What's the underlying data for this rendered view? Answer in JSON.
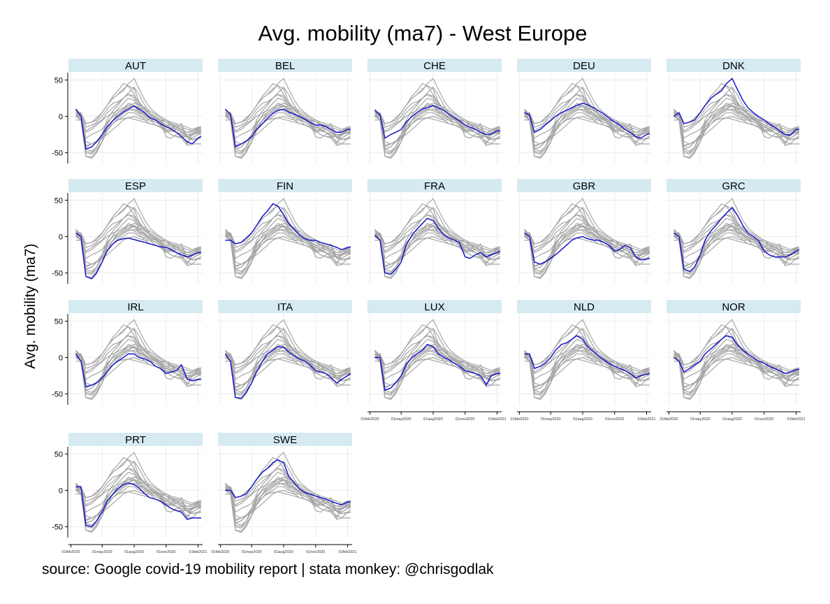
{
  "title": "Avg. mobility (ma7) - West Europe",
  "ylabel": "Avg. mobility (ma7)",
  "source": "source: Google covid-19 mobility report | stata monkey: @chrisgodlak",
  "colors": {
    "highlight": "#1515c8",
    "background_series": "#a6a6a6",
    "strip": "#d6eaf2",
    "grid": "#ececec"
  },
  "chart_data": {
    "type": "line",
    "facet": "small-multiples, one panel per country; highlighted country in blue, all other countries in grey",
    "countries": [
      "AUT",
      "BEL",
      "CHE",
      "DEU",
      "DNK",
      "ESP",
      "FIN",
      "FRA",
      "GBR",
      "GRC",
      "IRL",
      "ITA",
      "LUX",
      "NLD",
      "NOR",
      "PRT",
      "SWE"
    ],
    "x_ticks": [
      "01feb2020",
      "01may2020",
      "01aug2020",
      "01nov2020",
      "01feb2021"
    ],
    "y_ticks": [
      50,
      0,
      -50
    ],
    "ylim": [
      -65,
      60
    ],
    "x_dates": [
      "2020-02-15",
      "2020-03-01",
      "2020-03-15",
      "2020-04-01",
      "2020-04-15",
      "2020-05-01",
      "2020-05-15",
      "2020-06-01",
      "2020-06-15",
      "2020-07-01",
      "2020-07-15",
      "2020-08-01",
      "2020-08-15",
      "2020-09-01",
      "2020-09-15",
      "2020-10-01",
      "2020-10-15",
      "2020-11-01",
      "2020-11-15",
      "2020-12-01",
      "2020-12-15",
      "2021-01-01",
      "2021-01-15",
      "2021-02-01",
      "2021-02-10"
    ],
    "series": [
      {
        "name": "AUT",
        "values": [
          10,
          0,
          -45,
          -42,
          -35,
          -25,
          -15,
          -6,
          0,
          6,
          10,
          14,
          10,
          5,
          -2,
          -5,
          -10,
          -14,
          -17,
          -22,
          -28,
          -35,
          -38,
          -30,
          -27
        ]
      },
      {
        "name": "BEL",
        "values": [
          10,
          3,
          -42,
          -38,
          -34,
          -28,
          -18,
          -10,
          -3,
          4,
          8,
          10,
          6,
          3,
          0,
          -4,
          -8,
          -12,
          -12,
          -14,
          -18,
          -22,
          -22,
          -18,
          -18
        ]
      },
      {
        "name": "CHE",
        "values": [
          8,
          2,
          -30,
          -25,
          -22,
          -18,
          -8,
          0,
          5,
          10,
          12,
          15,
          12,
          8,
          3,
          -2,
          -6,
          -12,
          -15,
          -18,
          -22,
          -25,
          -24,
          -20,
          -20
        ]
      },
      {
        "name": "DEU",
        "values": [
          5,
          2,
          -22,
          -18,
          -12,
          -6,
          0,
          5,
          8,
          12,
          15,
          18,
          16,
          12,
          8,
          3,
          -2,
          -8,
          -12,
          -18,
          -22,
          -28,
          -30,
          -25,
          -24
        ]
      },
      {
        "name": "DNK",
        "values": [
          0,
          5,
          -10,
          -8,
          -5,
          5,
          15,
          25,
          30,
          35,
          45,
          52,
          38,
          22,
          12,
          5,
          0,
          -5,
          -10,
          -15,
          -20,
          -25,
          -26,
          -18,
          -18
        ]
      },
      {
        "name": "ESP",
        "values": [
          5,
          0,
          -55,
          -58,
          -50,
          -35,
          -20,
          -10,
          -5,
          -3,
          -2,
          -4,
          -6,
          -8,
          -10,
          -12,
          -14,
          -15,
          -18,
          -22,
          -25,
          -28,
          -26,
          -22,
          -22
        ]
      },
      {
        "name": "FIN",
        "values": [
          -5,
          -5,
          -10,
          -8,
          -2,
          5,
          15,
          28,
          35,
          45,
          42,
          30,
          18,
          10,
          2,
          -3,
          -5,
          -5,
          -8,
          -10,
          -12,
          -15,
          -18,
          -15,
          -14
        ]
      },
      {
        "name": "FRA",
        "values": [
          2,
          -5,
          -50,
          -52,
          -45,
          -35,
          -12,
          2,
          10,
          18,
          25,
          22,
          12,
          2,
          -2,
          -5,
          -8,
          -28,
          -30,
          -25,
          -22,
          -28,
          -25,
          -22,
          -20
        ]
      },
      {
        "name": "GBR",
        "values": [
          5,
          0,
          -35,
          -38,
          -35,
          -30,
          -25,
          -18,
          -12,
          -5,
          -2,
          0,
          -3,
          -5,
          -5,
          -8,
          -12,
          -20,
          -18,
          -12,
          -15,
          -28,
          -32,
          -31,
          -30
        ]
      },
      {
        "name": "GRC",
        "values": [
          5,
          0,
          -45,
          -48,
          -42,
          -25,
          -5,
          8,
          15,
          25,
          32,
          40,
          30,
          15,
          5,
          0,
          -5,
          -20,
          -25,
          -28,
          -28,
          -28,
          -25,
          -20,
          -18
        ]
      },
      {
        "name": "IRL",
        "values": [
          5,
          -5,
          -40,
          -38,
          -35,
          -28,
          -20,
          -10,
          -5,
          0,
          5,
          5,
          0,
          -2,
          -5,
          -12,
          -15,
          -22,
          -20,
          -18,
          -10,
          -30,
          -32,
          -30,
          -30
        ]
      },
      {
        "name": "ITA",
        "values": [
          5,
          -5,
          -55,
          -56,
          -48,
          -35,
          -20,
          -5,
          5,
          10,
          15,
          14,
          8,
          2,
          -2,
          -5,
          -10,
          -18,
          -20,
          -22,
          -28,
          -35,
          -30,
          -25,
          -22
        ]
      },
      {
        "name": "LUX",
        "values": [
          0,
          0,
          -45,
          -42,
          -35,
          -25,
          -10,
          0,
          5,
          10,
          18,
          15,
          5,
          0,
          -3,
          -8,
          -12,
          -18,
          -20,
          -22,
          -25,
          -38,
          -25,
          -22,
          -22
        ]
      },
      {
        "name": "NLD",
        "values": [
          5,
          5,
          -15,
          -12,
          -8,
          0,
          10,
          18,
          20,
          25,
          30,
          25,
          15,
          8,
          2,
          -3,
          -8,
          -12,
          -15,
          -18,
          -22,
          -28,
          -25,
          -23,
          -22
        ]
      },
      {
        "name": "NOR",
        "values": [
          0,
          -5,
          -20,
          -15,
          -10,
          -5,
          5,
          12,
          18,
          25,
          30,
          28,
          18,
          10,
          5,
          0,
          -5,
          -8,
          -12,
          -15,
          -18,
          -22,
          -20,
          -17,
          -16
        ]
      },
      {
        "name": "PRT",
        "values": [
          5,
          5,
          -48,
          -50,
          -42,
          -30,
          -15,
          -5,
          2,
          8,
          10,
          8,
          3,
          -5,
          -10,
          -12,
          -15,
          -20,
          -25,
          -28,
          -30,
          -40,
          -38,
          -38,
          -38
        ]
      },
      {
        "name": "SWE",
        "values": [
          0,
          0,
          -10,
          -8,
          -5,
          5,
          15,
          25,
          30,
          38,
          42,
          38,
          20,
          10,
          2,
          -3,
          -5,
          -8,
          -10,
          -12,
          -15,
          -18,
          -20,
          -16,
          -16
        ]
      }
    ]
  }
}
